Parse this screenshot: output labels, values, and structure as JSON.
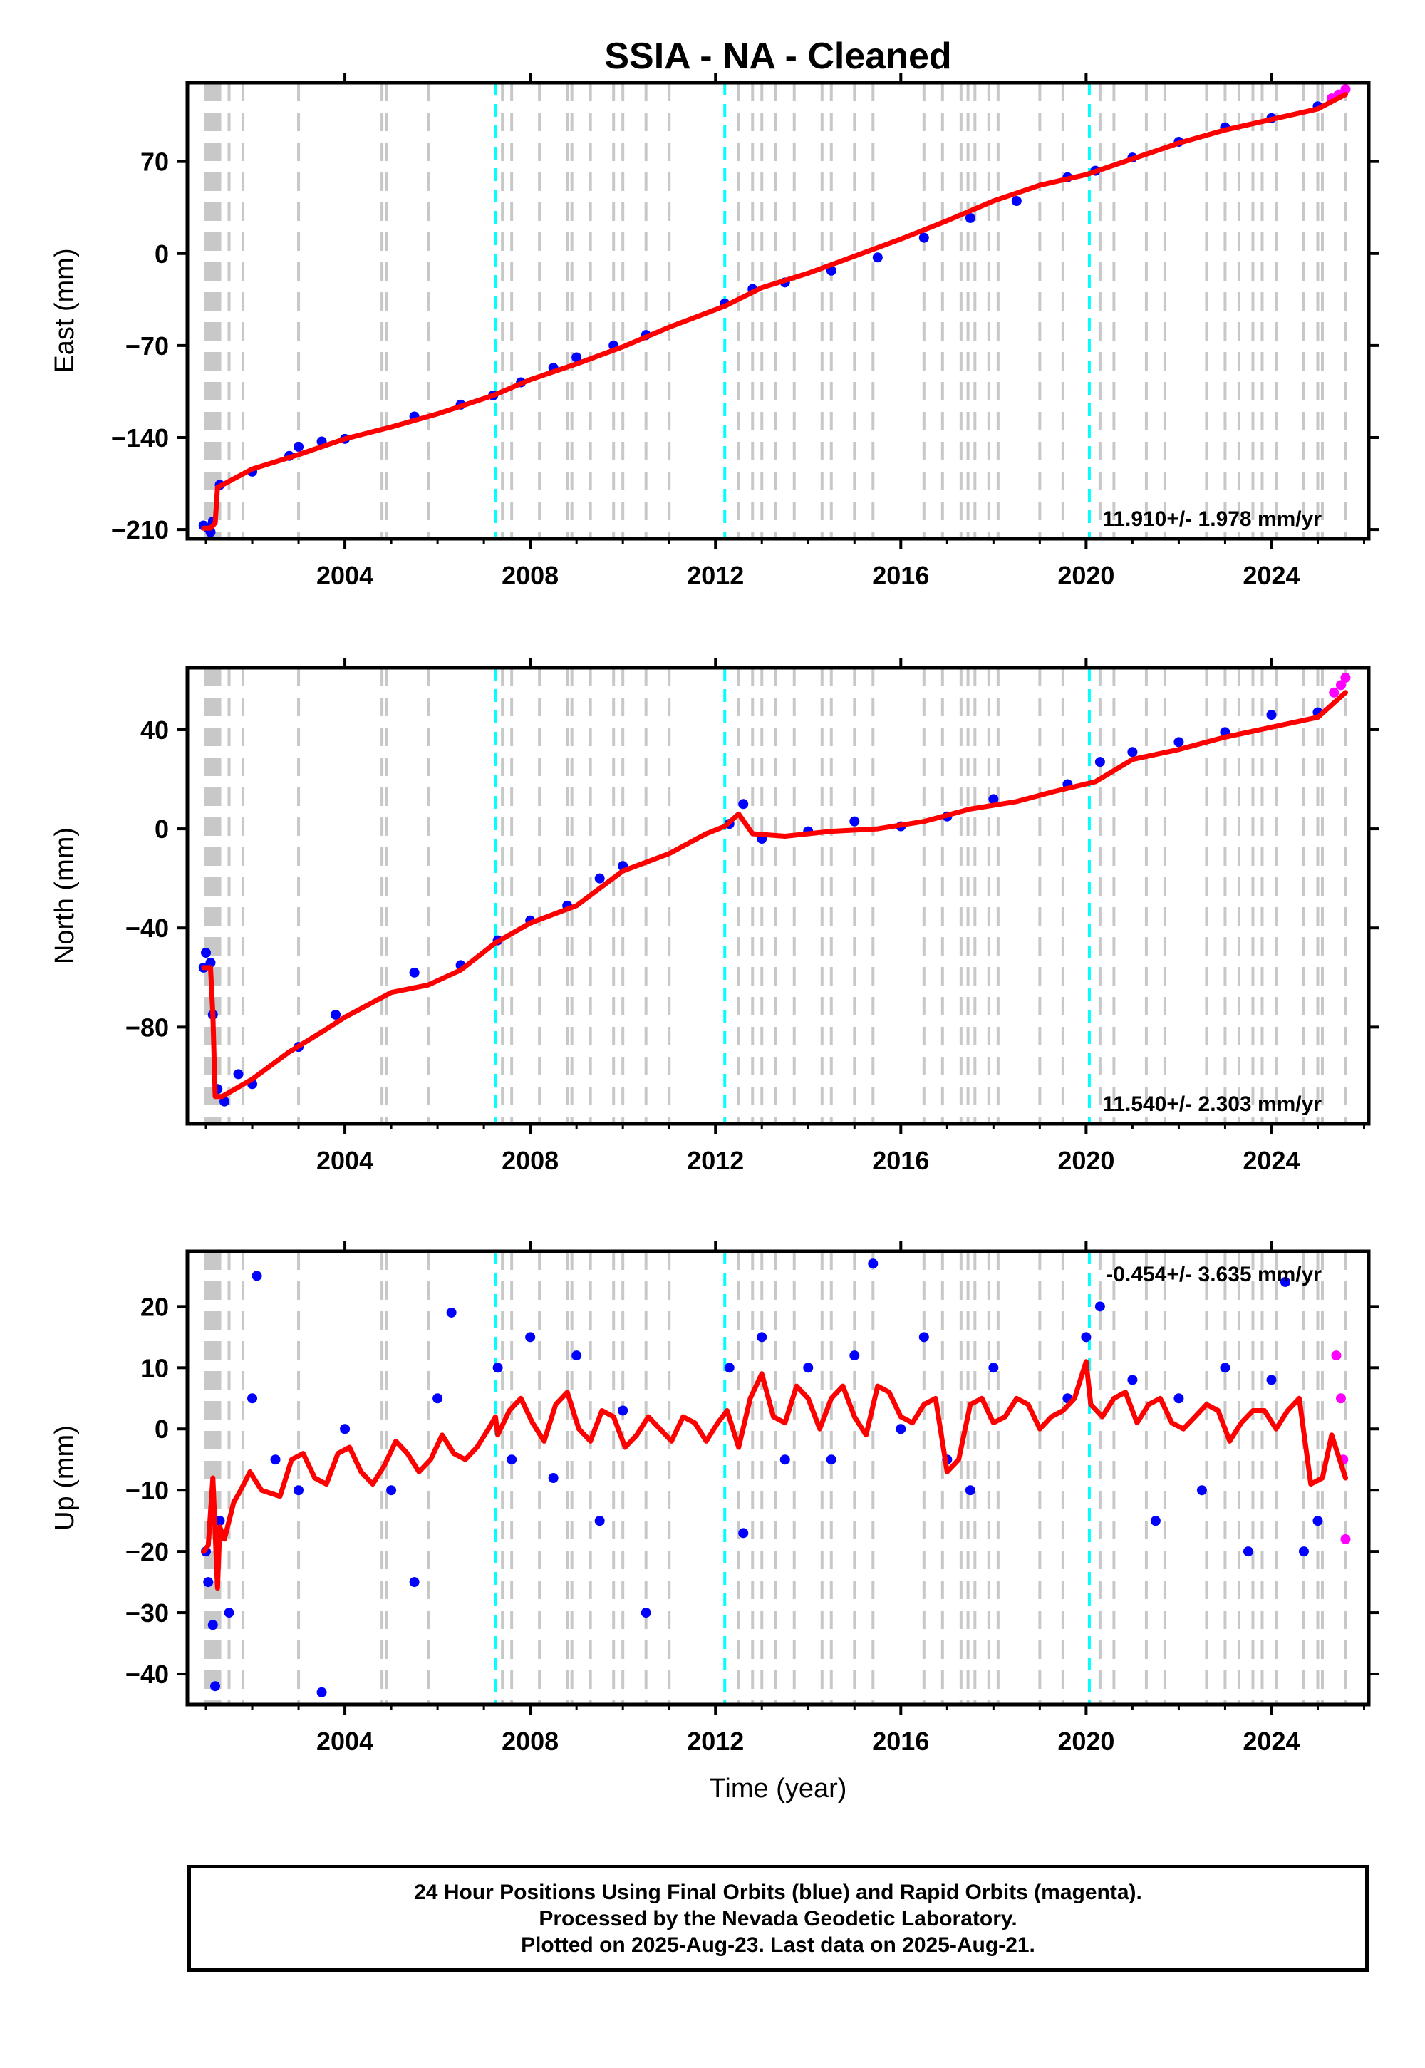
{
  "title": "SSIA  - NA - Cleaned",
  "colors": {
    "final_orbits": "#0000ff",
    "rapid_orbits": "#ff00ff",
    "model_fit": "#ff0000",
    "equipment_change": "#c8c8c8",
    "earthquake": "#00ffff"
  },
  "chart_data": [
    {
      "type": "scatter",
      "panel": "east",
      "ylabel": "East (mm)",
      "xlim": [
        2000.6,
        2026.1
      ],
      "ylim": [
        -217,
        130
      ],
      "yticks": [
        70,
        0,
        -70,
        -140,
        -210
      ],
      "xticks": [
        2004,
        2008,
        2012,
        2016,
        2020,
        2024
      ],
      "rate_label": "11.910+/- 1.978 mm/yr",
      "grid": false,
      "series": [
        {
          "name": "Final Orbits (blue)",
          "x": [
            2000.95,
            2001.05,
            2001.1,
            2001.15,
            2001.3,
            2002.0,
            2002.8,
            2003.0,
            2003.5,
            2004.0,
            2005.5,
            2006.5,
            2007.2,
            2007.8,
            2008.5,
            2009.0,
            2009.8,
            2010.5,
            2012.2,
            2012.8,
            2013.5,
            2014.5,
            2015.5,
            2016.5,
            2017.5,
            2018.5,
            2019.6,
            2020.2,
            2021.0,
            2022.0,
            2023.0,
            2024.0,
            2025.0
          ],
          "y": [
            -207,
            -209,
            -212,
            -204,
            -176,
            -166,
            -154,
            -147,
            -143,
            -141,
            -124,
            -115,
            -108,
            -98,
            -87,
            -79,
            -70,
            -62,
            -38,
            -27,
            -22,
            -13,
            -3,
            12,
            27,
            40,
            58,
            63,
            73,
            85,
            96,
            103,
            112
          ]
        },
        {
          "name": "Rapid Orbits (magenta)",
          "x": [
            2025.3,
            2025.45,
            2025.6
          ],
          "y": [
            118,
            121,
            125
          ]
        }
      ],
      "model": {
        "name": "model fit",
        "x": [
          2000.95,
          2001.1,
          2001.2,
          2001.25,
          2002.0,
          2003.0,
          2004.0,
          2005.0,
          2006.0,
          2007.2,
          2008.0,
          2009.0,
          2010.0,
          2011.0,
          2012.2,
          2013.0,
          2014.0,
          2015.0,
          2016.0,
          2017.0,
          2018.0,
          2019.0,
          2020.0,
          2021.0,
          2022.0,
          2023.0,
          2024.0,
          2025.0,
          2025.6
        ],
        "y": [
          -209,
          -209,
          -205,
          -178,
          -164,
          -153,
          -141,
          -132,
          -122,
          -108,
          -96,
          -84,
          -71,
          -56,
          -40,
          -26,
          -15,
          -2,
          11,
          25,
          40,
          52,
          60,
          72,
          84,
          94,
          102,
          110,
          121
        ]
      },
      "equipment_changes": [
        2001.0,
        2001.05,
        2001.1,
        2001.15,
        2001.2,
        2001.25,
        2001.3,
        2001.5,
        2001.8,
        2003.0,
        2004.8,
        2004.9,
        2005.8,
        2007.4,
        2007.6,
        2008.2,
        2008.8,
        2008.9,
        2009.3,
        2009.8,
        2010.0,
        2010.5,
        2011.0,
        2012.5,
        2012.8,
        2013.0,
        2013.3,
        2013.7,
        2014.3,
        2014.5,
        2015.0,
        2015.4,
        2016.5,
        2016.9,
        2017.3,
        2017.45,
        2017.6,
        2017.9,
        2018.1,
        2019.0,
        2019.5,
        2020.3,
        2020.6,
        2021.3,
        2021.7,
        2022.6,
        2023.0,
        2023.3,
        2023.6,
        2023.8,
        2024.1,
        2024.7,
        2025.0,
        2025.1,
        2025.6
      ],
      "earthquakes": [
        2007.25,
        2012.2,
        2020.07
      ]
    },
    {
      "type": "scatter",
      "panel": "north",
      "ylabel": "North (mm)",
      "xlim": [
        2000.6,
        2026.1
      ],
      "ylim": [
        -119,
        65
      ],
      "yticks": [
        40,
        0,
        -40,
        -80
      ],
      "xticks": [
        2004,
        2008,
        2012,
        2016,
        2020,
        2024
      ],
      "rate_label": "11.540+/- 2.303 mm/yr",
      "grid": false,
      "series": [
        {
          "name": "Final Orbits (blue)",
          "x": [
            2000.95,
            2001.0,
            2001.1,
            2001.15,
            2001.25,
            2001.4,
            2001.7,
            2002.0,
            2003.0,
            2003.8,
            2005.5,
            2006.5,
            2007.3,
            2008.0,
            2008.8,
            2009.5,
            2010.0,
            2012.3,
            2012.6,
            2013.0,
            2014.0,
            2015.0,
            2016.0,
            2017.0,
            2018.0,
            2019.6,
            2020.3,
            2021.0,
            2022.0,
            2023.0,
            2024.0,
            2025.0
          ],
          "y": [
            -56,
            -50,
            -54,
            -75,
            -105,
            -110,
            -99,
            -103,
            -88,
            -75,
            -58,
            -55,
            -45,
            -37,
            -31,
            -20,
            -15,
            2,
            10,
            -4,
            -1,
            3,
            1,
            5,
            12,
            18,
            27,
            31,
            35,
            39,
            46,
            47
          ]
        },
        {
          "name": "Rapid Orbits (magenta)",
          "x": [
            2025.35,
            2025.5,
            2025.6
          ],
          "y": [
            55,
            58,
            61
          ]
        }
      ],
      "model": {
        "name": "model fit",
        "x": [
          2000.95,
          2001.1,
          2001.15,
          2001.2,
          2001.35,
          2002.0,
          2002.8,
          2003.5,
          2004.0,
          2005.0,
          2005.8,
          2006.5,
          2007.25,
          2008.0,
          2009.0,
          2010.0,
          2011.0,
          2011.8,
          2012.2,
          2012.5,
          2012.8,
          2013.5,
          2014.5,
          2015.5,
          2016.5,
          2017.5,
          2018.5,
          2019.3,
          2020.2,
          2021.0,
          2022.0,
          2023.0,
          2024.0,
          2025.0,
          2025.6
        ],
        "y": [
          -56,
          -56,
          -75,
          -108,
          -108,
          -101,
          -90,
          -82,
          -76,
          -66,
          -63,
          -57,
          -46,
          -38,
          -31,
          -17,
          -10,
          -2,
          1,
          6,
          -2,
          -3,
          -1,
          0,
          3,
          8,
          11,
          15,
          19,
          28,
          32,
          37,
          41,
          45,
          55
        ]
      },
      "equipment_changes": [
        2001.0,
        2001.05,
        2001.1,
        2001.15,
        2001.2,
        2001.25,
        2001.3,
        2001.5,
        2001.8,
        2003.0,
        2004.8,
        2004.9,
        2005.8,
        2007.4,
        2007.6,
        2008.2,
        2008.8,
        2008.9,
        2009.3,
        2009.8,
        2010.0,
        2010.5,
        2011.0,
        2012.5,
        2012.8,
        2013.0,
        2013.3,
        2013.7,
        2014.3,
        2014.5,
        2015.0,
        2015.4,
        2016.5,
        2016.9,
        2017.3,
        2017.45,
        2017.6,
        2017.9,
        2018.1,
        2019.0,
        2019.5,
        2020.3,
        2020.6,
        2021.3,
        2021.7,
        2022.6,
        2023.0,
        2023.3,
        2023.6,
        2023.8,
        2024.1,
        2024.7,
        2025.0,
        2025.1,
        2025.6
      ],
      "earthquakes": [
        2007.25,
        2012.2,
        2020.07
      ]
    },
    {
      "type": "scatter",
      "panel": "up",
      "ylabel": "Up (mm)",
      "xlabel": "Time (year)",
      "xlim": [
        2000.6,
        2026.1
      ],
      "ylim": [
        -45,
        29
      ],
      "yticks": [
        20,
        10,
        0,
        -10,
        -20,
        -30,
        -40
      ],
      "xticks": [
        2004,
        2008,
        2012,
        2016,
        2020,
        2024
      ],
      "rate_label": "-0.454+/- 3.635 mm/yr",
      "grid": false,
      "series": [
        {
          "name": "Final Orbits (blue)",
          "x": [
            2001.0,
            2001.05,
            2001.15,
            2001.2,
            2001.3,
            2001.5,
            2002.0,
            2002.1,
            2002.5,
            2003.0,
            2003.5,
            2004.0,
            2005.0,
            2005.5,
            2006.0,
            2006.3,
            2007.3,
            2007.6,
            2008.0,
            2008.5,
            2009.0,
            2009.5,
            2010.0,
            2010.5,
            2012.3,
            2012.6,
            2013.0,
            2013.5,
            2014.0,
            2014.5,
            2015.0,
            2015.4,
            2016.0,
            2016.5,
            2017.0,
            2017.5,
            2018.0,
            2019.6,
            2020.0,
            2020.3,
            2021.0,
            2021.5,
            2022.0,
            2022.5,
            2023.0,
            2023.5,
            2024.0,
            2024.3,
            2024.7,
            2025.0
          ],
          "y": [
            -20,
            -25,
            -32,
            -42,
            -15,
            -30,
            5,
            25,
            -5,
            -10,
            -43,
            0,
            -10,
            -25,
            5,
            19,
            10,
            -5,
            15,
            -8,
            12,
            -15,
            3,
            -30,
            10,
            -17,
            15,
            -5,
            10,
            -5,
            12,
            27,
            0,
            15,
            -5,
            -10,
            10,
            5,
            15,
            20,
            8,
            -15,
            5,
            -10,
            10,
            -20,
            8,
            24,
            -20,
            -15
          ]
        },
        {
          "name": "Rapid Orbits (magenta)",
          "x": [
            2025.4,
            2025.5,
            2025.55,
            2025.6
          ],
          "y": [
            12,
            5,
            -5,
            -18
          ]
        }
      ],
      "model": {
        "name": "model fit",
        "x": [
          2000.95,
          2001.05,
          2001.15,
          2001.25,
          2001.3,
          2001.4,
          2001.6,
          2001.75,
          2001.95,
          2002.2,
          2002.6,
          2002.85,
          2003.1,
          2003.35,
          2003.6,
          2003.85,
          2004.1,
          2004.35,
          2004.6,
          2004.85,
          2005.1,
          2005.35,
          2005.6,
          2005.85,
          2006.1,
          2006.35,
          2006.6,
          2006.85,
          2007.1,
          2007.25,
          2007.3,
          2007.55,
          2007.8,
          2008.05,
          2008.3,
          2008.55,
          2008.8,
          2009.05,
          2009.3,
          2009.55,
          2009.8,
          2010.05,
          2010.3,
          2010.55,
          2010.8,
          2011.05,
          2011.3,
          2011.55,
          2011.8,
          2012.05,
          2012.25,
          2012.5,
          2012.75,
          2013.0,
          2013.25,
          2013.5,
          2013.75,
          2014.0,
          2014.25,
          2014.5,
          2014.75,
          2015.0,
          2015.25,
          2015.5,
          2015.75,
          2016.0,
          2016.25,
          2016.5,
          2016.75,
          2017.0,
          2017.25,
          2017.5,
          2017.75,
          2018.0,
          2018.25,
          2018.5,
          2018.75,
          2019.0,
          2019.25,
          2019.5,
          2019.75,
          2020.0,
          2020.1,
          2020.35,
          2020.6,
          2020.85,
          2021.1,
          2021.35,
          2021.6,
          2021.85,
          2022.1,
          2022.35,
          2022.6,
          2022.85,
          2023.1,
          2023.35,
          2023.6,
          2023.85,
          2024.1,
          2024.35,
          2024.6,
          2024.85,
          2025.1,
          2025.3,
          2025.6
        ],
        "y": [
          -20,
          -19,
          -8,
          -26,
          -16,
          -18,
          -12,
          -10,
          -7,
          -10,
          -11,
          -5,
          -4,
          -8,
          -9,
          -4,
          -3,
          -7,
          -9,
          -6,
          -2,
          -4,
          -7,
          -5,
          -1,
          -4,
          -5,
          -3,
          0,
          2,
          -1,
          3,
          5,
          1,
          -2,
          4,
          6,
          0,
          -2,
          3,
          2,
          -3,
          -1,
          2,
          0,
          -2,
          2,
          1,
          -2,
          1,
          3,
          -3,
          5,
          9,
          2,
          1,
          7,
          5,
          0,
          5,
          7,
          2,
          -1,
          7,
          6,
          2,
          1,
          4,
          5,
          -7,
          -5,
          4,
          5,
          1,
          2,
          5,
          4,
          0,
          2,
          3,
          5,
          11,
          4,
          2,
          5,
          6,
          1,
          4,
          5,
          1,
          0,
          2,
          4,
          3,
          -2,
          1,
          3,
          3,
          0,
          3,
          5,
          -9,
          -8,
          -1,
          -8
        ]
      },
      "equipment_changes": [
        2001.0,
        2001.05,
        2001.1,
        2001.15,
        2001.2,
        2001.25,
        2001.3,
        2001.5,
        2001.8,
        2003.0,
        2004.8,
        2004.9,
        2005.8,
        2007.4,
        2007.6,
        2008.2,
        2008.8,
        2008.9,
        2009.3,
        2009.8,
        2010.0,
        2010.5,
        2011.0,
        2012.5,
        2012.8,
        2013.0,
        2013.3,
        2013.7,
        2014.3,
        2014.5,
        2015.0,
        2015.4,
        2016.5,
        2016.9,
        2017.3,
        2017.45,
        2017.6,
        2017.9,
        2018.1,
        2019.0,
        2019.5,
        2020.3,
        2020.6,
        2021.3,
        2021.7,
        2022.6,
        2023.0,
        2023.3,
        2023.6,
        2023.8,
        2024.1,
        2024.7,
        2025.0,
        2025.1,
        2025.6
      ],
      "earthquakes": [
        2007.25,
        2012.2,
        2020.07
      ]
    }
  ],
  "footer": {
    "line1": "24 Hour Positions Using Final Orbits (blue) and Rapid Orbits (magenta).",
    "line2": "Processed by the Nevada Geodetic Laboratory.",
    "line3": "Plotted on 2025-Aug-23. Last data on 2025-Aug-21."
  }
}
